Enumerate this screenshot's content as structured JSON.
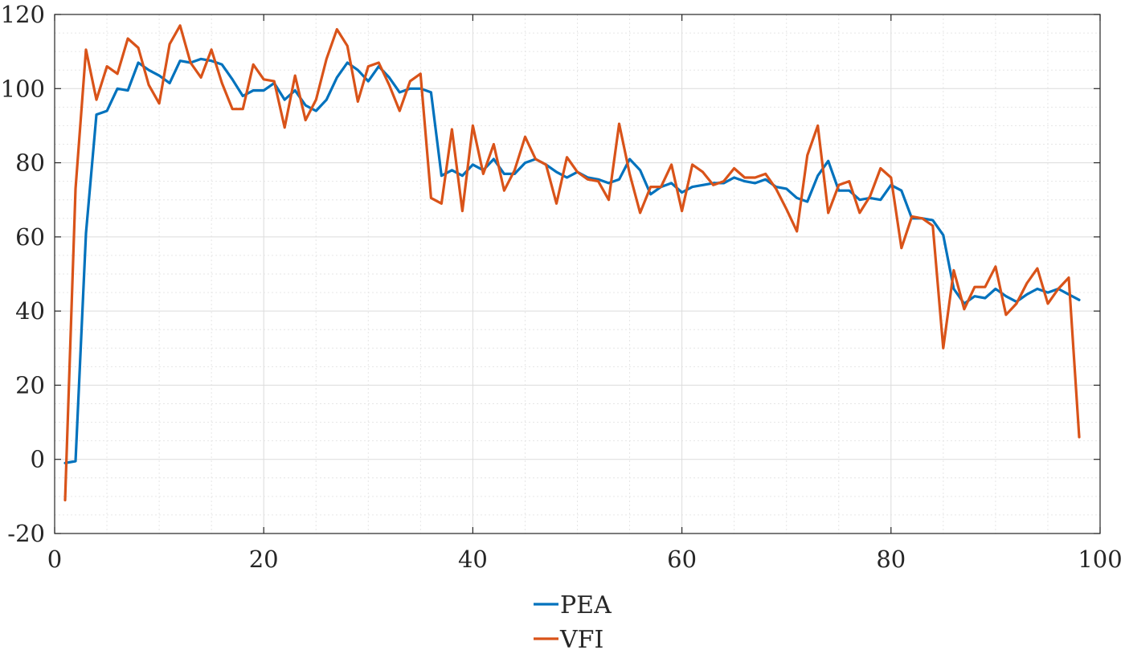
{
  "chart_data": {
    "type": "line",
    "title": "",
    "xlabel": "",
    "ylabel": "",
    "xlim": [
      0,
      100
    ],
    "ylim": [
      -20,
      120
    ],
    "xticks": [
      0,
      20,
      40,
      60,
      80,
      100
    ],
    "yticks": [
      -20,
      0,
      20,
      40,
      60,
      80,
      100,
      120
    ],
    "xtick_labels": [
      "0",
      "20",
      "40",
      "60",
      "80",
      "100"
    ],
    "ytick_labels": [
      "-20",
      "0",
      "20",
      "40",
      "60",
      "80",
      "100",
      "120"
    ],
    "grid": "major and minor",
    "legend_position": "bottom-center (below plot)",
    "x": [
      1,
      2,
      3,
      4,
      5,
      6,
      7,
      8,
      9,
      10,
      11,
      12,
      13,
      14,
      15,
      16,
      17,
      18,
      19,
      20,
      21,
      22,
      23,
      24,
      25,
      26,
      27,
      28,
      29,
      30,
      31,
      32,
      33,
      34,
      35,
      36,
      37,
      38,
      39,
      40,
      41,
      42,
      43,
      44,
      45,
      46,
      47,
      48,
      49,
      50,
      51,
      52,
      53,
      54,
      55,
      56,
      57,
      58,
      59,
      60,
      61,
      62,
      63,
      64,
      65,
      66,
      67,
      68,
      69,
      70,
      71,
      72,
      73,
      74,
      75,
      76,
      77,
      78,
      79,
      80,
      81,
      82,
      83,
      84,
      85,
      86,
      87,
      88,
      89,
      90,
      91,
      92,
      93,
      94,
      95,
      96,
      97,
      98
    ],
    "series": [
      {
        "name": "PEA",
        "color": "#0072BD",
        "values": [
          -1,
          -0.5,
          61,
          93,
          94,
          100,
          99.5,
          107,
          105,
          103.5,
          101.5,
          107.5,
          107,
          108,
          107.5,
          106.5,
          102.5,
          98,
          99.5,
          99.5,
          101.5,
          97,
          99.5,
          95.5,
          94,
          97,
          103,
          107,
          105,
          102,
          106,
          103,
          99,
          100,
          100,
          99,
          76.5,
          78,
          76.5,
          79.5,
          78,
          81,
          77,
          77,
          80,
          81,
          79.5,
          77.5,
          76,
          77.5,
          76,
          75.5,
          74.5,
          75.5,
          81,
          78,
          71.5,
          73.5,
          74.5,
          72,
          73.5,
          74,
          74.5,
          74.5,
          76,
          75,
          74.5,
          75.5,
          73.5,
          73,
          70.5,
          69.5,
          76.5,
          80.5,
          72.5,
          72.5,
          70,
          70.5,
          70,
          74,
          72.5,
          65,
          65,
          64.5,
          60.5,
          46,
          42,
          44,
          43.5,
          46,
          44,
          42.5,
          44.5,
          46,
          45,
          46,
          44.5,
          43
        ]
      },
      {
        "name": "VFI",
        "color": "#D95319",
        "values": [
          -11,
          73,
          110.5,
          97,
          106,
          104,
          113.5,
          111,
          101,
          96,
          112,
          117,
          107,
          103,
          110.5,
          101.5,
          94.5,
          94.5,
          106.5,
          102.5,
          102,
          89.5,
          103.5,
          91.5,
          97,
          108,
          116,
          111.5,
          96.5,
          106,
          107,
          101,
          94,
          102,
          104,
          70.5,
          69,
          89,
          67,
          90,
          77,
          85,
          72.5,
          78,
          87,
          81,
          79.5,
          69,
          81.5,
          77.5,
          75.5,
          75,
          70,
          90.5,
          77,
          66.5,
          73.5,
          73.5,
          79.5,
          67,
          79.5,
          77.5,
          74,
          75,
          78.5,
          76,
          76,
          77,
          73,
          67.5,
          61.5,
          82,
          90,
          66.5,
          74,
          75,
          66.5,
          71,
          78.5,
          76,
          57,
          65.5,
          65,
          63,
          30,
          51,
          40.5,
          46.5,
          46.5,
          52,
          39,
          42,
          47.5,
          51.5,
          42,
          46,
          49,
          6
        ]
      }
    ]
  }
}
